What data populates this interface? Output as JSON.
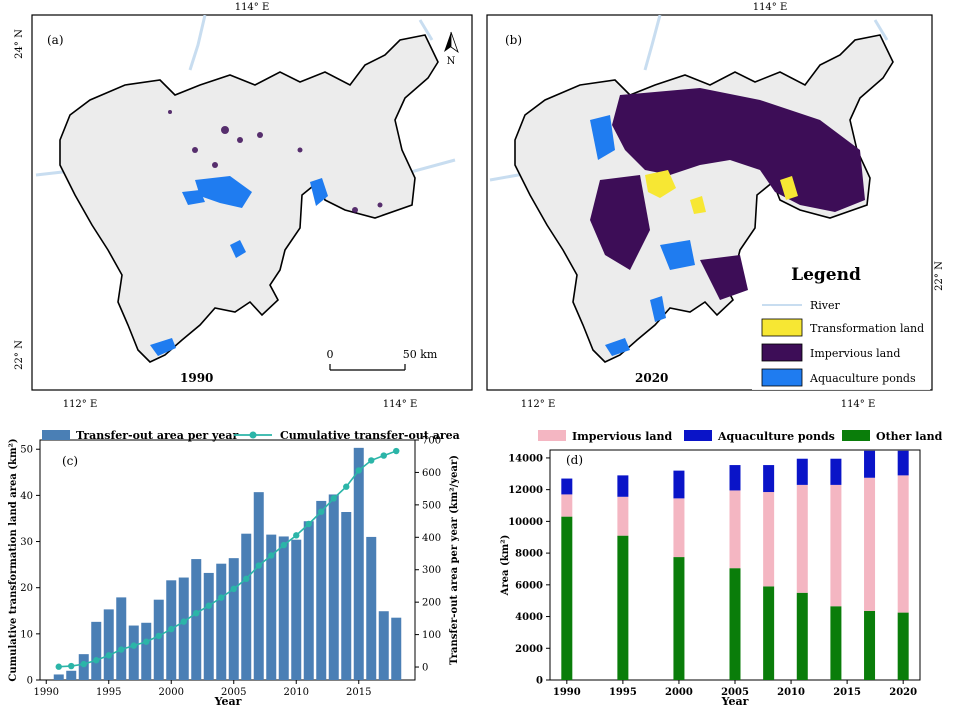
{
  "map_a": {
    "panel_label": "(a)",
    "year_label": "1990",
    "top_lon": "114° E",
    "bottom_lons": [
      "112° E",
      "114° E"
    ],
    "left_lats": [
      "24° N",
      "22° N"
    ],
    "north_label": "N",
    "scale_start": "0",
    "scale_end": "50 km"
  },
  "map_b": {
    "panel_label": "(b)",
    "year_label": "2020",
    "top_lon": "114° E",
    "bottom_lons": [
      "112° E",
      "114° E"
    ],
    "right_lat": "22° N",
    "legend_title": "Legend",
    "legend_items": [
      {
        "label": "River",
        "color": "#c8ddf0"
      },
      {
        "label": "Transformation land",
        "color": "#f7e733"
      },
      {
        "label": "Impervious land",
        "color": "#3d0d57"
      },
      {
        "label": "Aquaculture ponds",
        "color": "#1f7cf0"
      }
    ]
  },
  "chart_data": [
    {
      "type": "bar+line",
      "panel_label": "(c)",
      "xlabel": "Year",
      "ylabel_left": "Cumulative transformation land area (km²)",
      "ylabel_right": "Transfer-out area per year (km²/year)",
      "legend": [
        "Transfer-out area per year",
        "Cumulative transfer-out area"
      ],
      "bar_color": "#4a7fb5",
      "line_color": "#2bb5a8",
      "xlim": [
        1989.5,
        2019.5
      ],
      "xticks": [
        "1990",
        "1995",
        "2000",
        "2005",
        "2010",
        "2015"
      ],
      "ylim_left": [
        0,
        52
      ],
      "yticks_left": [
        "0",
        "10",
        "20",
        "30",
        "40",
        "50"
      ],
      "ylim_right": [
        -40,
        700
      ],
      "yticks_right": [
        "0",
        "100",
        "200",
        "300",
        "400",
        "500",
        "600",
        "700"
      ],
      "years": [
        1991,
        1992,
        1993,
        1994,
        1995,
        1996,
        1997,
        1998,
        1999,
        2000,
        2001,
        2002,
        2003,
        2004,
        2005,
        2006,
        2007,
        2008,
        2009,
        2010,
        2011,
        2012,
        2013,
        2014,
        2015,
        2016,
        2017,
        2018
      ],
      "bar_values": [
        1.2,
        2.0,
        5.6,
        12.6,
        15.3,
        17.9,
        11.8,
        12.4,
        17.4,
        21.6,
        22.2,
        26.2,
        23.2,
        25.2,
        26.4,
        31.7,
        40.7,
        31.5,
        31.1,
        30.4,
        34.4,
        38.8,
        40.2,
        36.4,
        50.3,
        31.0,
        14.9,
        13.5
      ],
      "line_values": [
        1,
        3,
        9,
        21,
        36,
        54,
        66,
        78,
        96,
        117,
        140,
        166,
        189,
        214,
        241,
        272,
        313,
        344,
        376,
        406,
        441,
        479,
        520,
        556,
        606,
        637,
        652,
        666
      ]
    },
    {
      "type": "stacked-bar",
      "panel_label": "(d)",
      "xlabel": "Year",
      "ylabel": "Area (km²)",
      "ylim": [
        0,
        14500
      ],
      "yticks": [
        "0",
        "2000",
        "4000",
        "6000",
        "8000",
        "10000",
        "12000",
        "14000"
      ],
      "xlim": [
        1988.5,
        2021.5
      ],
      "xticks": [
        "1990",
        "1995",
        "2000",
        "2005",
        "2010",
        "2015",
        "2020"
      ],
      "categories": [
        "1990",
        "1995",
        "2000",
        "2005",
        "2008",
        "2011",
        "2014",
        "2017",
        "2020"
      ],
      "x": [
        1990,
        1995,
        2000,
        2005,
        2008,
        2011,
        2014,
        2017,
        2020
      ],
      "series": [
        {
          "name": "Other land",
          "color": "#0a7d0a",
          "values": [
            10300,
            9100,
            7750,
            7050,
            5900,
            5500,
            4650,
            4350,
            4250
          ]
        },
        {
          "name": "Impervious land",
          "color": "#f4b6c2",
          "values": [
            1400,
            2450,
            3700,
            4900,
            5950,
            6800,
            7650,
            8400,
            8650
          ]
        },
        {
          "name": "Aquaculture ponds",
          "color": "#0a14c8",
          "values": [
            1000,
            1350,
            1750,
            1600,
            1700,
            1650,
            1650,
            1700,
            1550
          ]
        }
      ],
      "legend": [
        "Impervious land",
        "Aquaculture ponds",
        "Other land"
      ]
    }
  ]
}
